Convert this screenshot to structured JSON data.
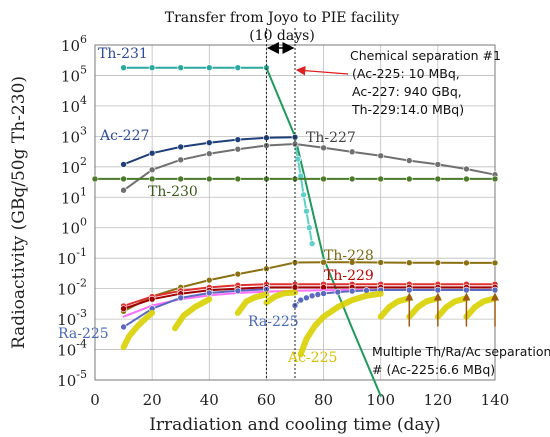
{
  "chart_data": {
    "type": "line",
    "xlabel": "Irradiation and cooling time (day)",
    "ylabel": "Radioactivity (GBq/50g Th-230)",
    "xlim": [
      0,
      140
    ],
    "ylim_exponent": [
      -5,
      6
    ],
    "y_scale": "log",
    "grid": true,
    "x_ticks": [
      "0",
      "20",
      "40",
      "60",
      "80",
      "100",
      "120",
      "140"
    ],
    "y_ticks": [
      {
        "base": "10",
        "exp": "6"
      },
      {
        "base": "10",
        "exp": "5"
      },
      {
        "base": "10",
        "exp": "4"
      },
      {
        "base": "10",
        "exp": "3"
      },
      {
        "base": "10",
        "exp": "2"
      },
      {
        "base": "10",
        "exp": "1"
      },
      {
        "base": "10",
        "exp": "0"
      },
      {
        "base": "10",
        "exp": "-1"
      },
      {
        "base": "10",
        "exp": "-2"
      },
      {
        "base": "10",
        "exp": "-3"
      },
      {
        "base": "10",
        "exp": "-4"
      },
      {
        "base": "10",
        "exp": "-5"
      }
    ],
    "annotations": {
      "transfer_title": "Transfer from Joyo to PIE facility",
      "transfer_days": "(10 days)",
      "chem_sep_lines": [
        "Chemical separation #1",
        "(Ac-225:  10 MBq,",
        "Ac-227: 940 GBq,",
        "Th-229:14.0 MBq)"
      ],
      "multi_sep_lines": [
        "Multiple Th/Ra/Ac separations",
        "# (Ac-225:6.6 MBq)"
      ]
    },
    "series_labels": [
      {
        "text": "Th-231",
        "color": "#2e4a9a"
      },
      {
        "text": "Ac-227",
        "color": "#2e4a9a"
      },
      {
        "text": "Th-227",
        "color": "#444444"
      },
      {
        "text": "Th-230",
        "color": "#3a5a1a"
      },
      {
        "text": "Th-228",
        "color": "#7a6a10"
      },
      {
        "text": "Th-229",
        "color": "#c00000"
      },
      {
        "text": "Ra-225",
        "color": "#4a6ab8"
      },
      {
        "text": "Ra-225",
        "color": "#4a6ab8"
      },
      {
        "text": "Ac-225",
        "color": "#d8c000"
      }
    ],
    "series": [
      {
        "color": "#2aa8a0",
        "marker": true,
        "x": [
          10,
          20,
          30,
          40,
          50,
          60
        ],
        "y": [
          180000.0,
          180000.0,
          180000.0,
          180000.0,
          180000.0,
          180000.0
        ]
      },
      {
        "color": "#1e9a5a",
        "marker": false,
        "x": [
          60,
          70,
          80,
          90,
          100
        ],
        "y": [
          180000.0,
          1000.0,
          0.1,
          0.0005,
          3e-06
        ]
      },
      {
        "color": "#5fd0c8",
        "marker": true,
        "x": [
          70,
          71,
          72,
          73,
          74,
          75,
          76
        ],
        "y": [
          600.0,
          180.0,
          50,
          12,
          3.5,
          1,
          0.3
        ]
      },
      {
        "color": "#1f3f78",
        "marker": true,
        "x": [
          10,
          20,
          30,
          40,
          50,
          60,
          70
        ],
        "y": [
          120,
          280,
          450,
          620,
          780,
          900,
          940
        ]
      },
      {
        "color": "#707070",
        "marker": true,
        "x": [
          10,
          20,
          30,
          40,
          50,
          60,
          70,
          80,
          90,
          100,
          110,
          120,
          130,
          140
        ],
        "y": [
          17,
          80,
          170,
          270,
          380,
          500,
          560,
          420,
          310,
          230,
          160,
          120,
          85,
          55
        ]
      },
      {
        "color": "#4a7a2a",
        "marker": true,
        "x": [
          0,
          10,
          20,
          30,
          40,
          50,
          60,
          70,
          80,
          90,
          100,
          110,
          120,
          130,
          140
        ],
        "y": [
          40,
          40,
          40,
          40,
          40,
          40,
          40,
          40,
          40,
          40,
          40,
          40,
          40,
          40,
          40
        ]
      },
      {
        "color": "#8a7010",
        "marker": true,
        "x": [
          10,
          20,
          30,
          40,
          50,
          60,
          70,
          80,
          90,
          100,
          110,
          120,
          130,
          140
        ],
        "y": [
          0.0018,
          0.0055,
          0.011,
          0.019,
          0.03,
          0.045,
          0.072,
          0.073,
          0.073,
          0.072,
          0.071,
          0.071,
          0.07,
          0.07
        ]
      },
      {
        "color": "#e03030",
        "marker": true,
        "x": [
          10,
          20,
          30,
          40,
          50,
          60,
          70,
          80,
          90,
          100,
          110,
          120,
          130,
          140
        ],
        "y": [
          0.0027,
          0.0055,
          0.0085,
          0.011,
          0.013,
          0.014,
          0.014,
          0.014,
          0.014,
          0.014,
          0.014,
          0.014,
          0.014,
          0.014
        ]
      },
      {
        "color": "#a00000",
        "marker": true,
        "x": [
          10,
          20,
          30,
          40,
          50,
          60,
          70,
          80,
          90,
          100,
          110,
          120,
          130,
          140
        ],
        "y": [
          0.0022,
          0.0045,
          0.0068,
          0.0088,
          0.01,
          0.011,
          0.011,
          0.011,
          0.011,
          0.011,
          0.011,
          0.011,
          0.011,
          0.011
        ]
      },
      {
        "color": "#ff70ff",
        "marker": false,
        "x": [
          10,
          20,
          30,
          40,
          50,
          60,
          70,
          80,
          90,
          100,
          110,
          120,
          130,
          140
        ],
        "y": [
          0.0012,
          0.0028,
          0.0045,
          0.006,
          0.0072,
          0.008,
          0.0085,
          0.0088,
          0.009,
          0.009,
          0.009,
          0.009,
          0.009,
          0.009
        ]
      },
      {
        "color": "#5a6ac0",
        "marker": true,
        "x": [
          10,
          20,
          30,
          40,
          50,
          60
        ],
        "y": [
          0.00055,
          0.0022,
          0.005,
          0.0072,
          0.0085,
          0.0095
        ]
      },
      {
        "color": "#5a6ac0",
        "marker": true,
        "x": [
          70,
          72,
          74,
          76,
          78,
          80,
          85,
          90,
          95,
          100,
          110,
          120,
          130,
          140
        ],
        "y": [
          0.0028,
          0.0042,
          0.005,
          0.0058,
          0.0064,
          0.0069,
          0.0077,
          0.0083,
          0.0087,
          0.009,
          0.009,
          0.009,
          0.009,
          0.009
        ]
      },
      {
        "color": "#d8d000",
        "marker": false,
        "thick": true,
        "x": [
          10,
          12,
          15,
          18,
          20
        ],
        "y": [
          0.00012,
          0.00028,
          0.0006,
          0.0011,
          0.0016
        ]
      },
      {
        "color": "#d8d000",
        "marker": false,
        "thick": true,
        "x": [
          28,
          31,
          35,
          40
        ],
        "y": [
          0.0005,
          0.0013,
          0.0025,
          0.0045
        ]
      },
      {
        "color": "#d8d000",
        "marker": false,
        "thick": true,
        "x": [
          50,
          53,
          56,
          60
        ],
        "y": [
          0.0016,
          0.0038,
          0.0052,
          0.0065
        ]
      },
      {
        "color": "#d8d000",
        "marker": false,
        "thick": true,
        "x": [
          60,
          63,
          66,
          70
        ],
        "y": [
          0.0035,
          0.0055,
          0.007,
          0.0075
        ]
      },
      {
        "color": "#d8d000",
        "marker": false,
        "thick": true,
        "x": [
          72,
          74,
          77,
          80,
          85,
          90,
          95,
          100
        ],
        "y": [
          7e-05,
          0.00022,
          0.0006,
          0.0012,
          0.0025,
          0.0042,
          0.0058,
          0.0068
        ]
      },
      {
        "color": "#d8d000",
        "marker": false,
        "thick": true,
        "x": [
          100,
          103,
          106,
          110
        ],
        "y": [
          0.0012,
          0.0025,
          0.0038,
          0.0048
        ]
      },
      {
        "color": "#d8d000",
        "marker": false,
        "thick": true,
        "x": [
          110,
          113,
          116,
          120
        ],
        "y": [
          0.0012,
          0.0025,
          0.0038,
          0.0048
        ]
      },
      {
        "color": "#d8d000",
        "marker": false,
        "thick": true,
        "x": [
          120,
          123,
          126,
          130
        ],
        "y": [
          0.0012,
          0.0025,
          0.0038,
          0.0048
        ]
      },
      {
        "color": "#d8d000",
        "marker": false,
        "thick": true,
        "x": [
          130,
          133,
          136,
          140
        ],
        "y": [
          0.0012,
          0.0025,
          0.0038,
          0.0048
        ]
      }
    ],
    "separation_marker_x": [
      110,
      120,
      130,
      140
    ],
    "separation_marker_y": 0.0055,
    "vlines_x": [
      60,
      70
    ]
  }
}
